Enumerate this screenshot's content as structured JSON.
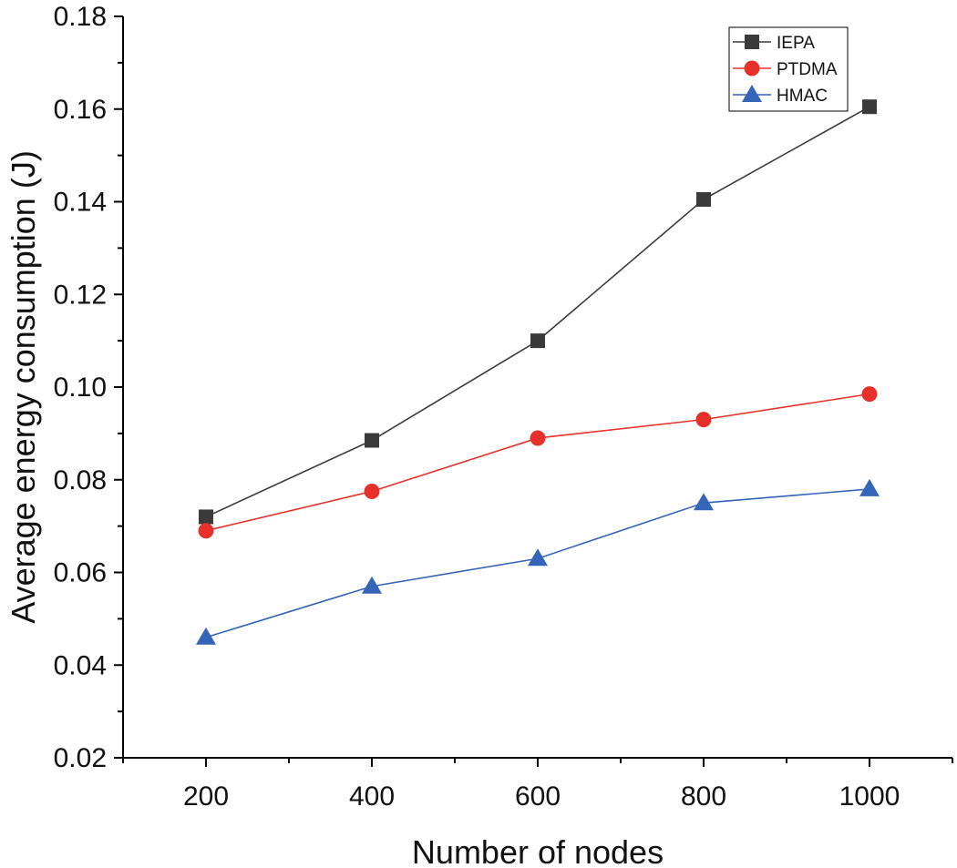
{
  "chart_data": {
    "type": "line",
    "title": "",
    "xlabel": "Number of nodes",
    "ylabel": "Average energy consumption (J)",
    "x": [
      200,
      400,
      600,
      800,
      1000
    ],
    "xlim": [
      100,
      1100
    ],
    "ylim": [
      0.02,
      0.18
    ],
    "xticks": [
      200,
      400,
      600,
      800,
      1000
    ],
    "xtick_labels": [
      "200",
      "400",
      "600",
      "800",
      "1000"
    ],
    "yticks": [
      0.02,
      0.04,
      0.06,
      0.08,
      0.1,
      0.12,
      0.14,
      0.16,
      0.18
    ],
    "ytick_labels": [
      "0.02",
      "0.04",
      "0.06",
      "0.08",
      "0.10",
      "0.12",
      "0.14",
      "0.16",
      "0.18"
    ],
    "grid": false,
    "legend_position": "top-right",
    "series": [
      {
        "name": "IEPA",
        "color": "#3a3a3a",
        "marker": "square",
        "values": [
          0.072,
          0.0885,
          0.11,
          0.1405,
          0.1605
        ]
      },
      {
        "name": "PTDMA",
        "color": "#e8302a",
        "marker": "circle",
        "values": [
          0.069,
          0.0775,
          0.089,
          0.093,
          0.0985
        ]
      },
      {
        "name": "HMAC",
        "color": "#3465b8",
        "marker": "triangle",
        "values": [
          0.046,
          0.057,
          0.063,
          0.075,
          0.078
        ]
      }
    ]
  }
}
